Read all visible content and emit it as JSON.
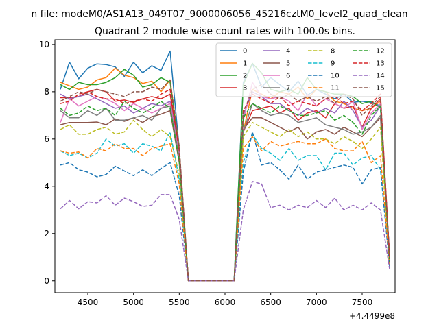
{
  "header": {
    "suptitle": "n file: modeM0/AS1A13_049T07_9000006056_45216cztM0_level2_quad_clean",
    "title": "Quadrant 2 module wise count rates with 100.0s bins."
  },
  "chart_data": {
    "type": "line",
    "title": "Quadrant 2 module wise count rates with 100.0s bins.",
    "xlabel": "",
    "ylabel": "",
    "offset_label": "+4.4499e8",
    "xlim": [
      4140,
      7860
    ],
    "ylim": [
      -0.5,
      10.2
    ],
    "xticks": [
      4500,
      5000,
      5500,
      6000,
      6500,
      7000,
      7500
    ],
    "xtick_labels": [
      "4500",
      "5000",
      "5500",
      "6000",
      "6500",
      "7000",
      "7500"
    ],
    "yticks": [
      0,
      2,
      4,
      6,
      8,
      10
    ],
    "ytick_labels": [
      "0",
      "2",
      "4",
      "6",
      "8",
      "10"
    ],
    "grid": false,
    "legend_position": "top-right",
    "legend_columns": 4,
    "x": [
      4200,
      4300,
      4400,
      4500,
      4600,
      4700,
      4800,
      4900,
      5000,
      5100,
      5200,
      5300,
      5400,
      5500,
      5600,
      5700,
      5800,
      5900,
      6000,
      6100,
      6200,
      6300,
      6400,
      6500,
      6600,
      6700,
      6800,
      6900,
      7000,
      7100,
      7200,
      7300,
      7400,
      7500,
      7600,
      7700,
      7800
    ],
    "series": [
      {
        "name": "0",
        "color": "#1f77b4",
        "dash": "solid",
        "values": [
          8.1,
          9.25,
          8.55,
          9.0,
          9.18,
          9.15,
          9.05,
          8.65,
          9.25,
          8.8,
          9.1,
          8.9,
          9.72,
          5.6,
          0,
          0,
          0,
          0,
          0,
          0,
          8.4,
          9.2,
          8.2,
          8.6,
          8.3,
          8.0,
          8.45,
          7.85,
          8.1,
          7.9,
          7.7,
          7.9,
          7.55,
          7.6,
          7.55,
          7.4,
          1.1
        ]
      },
      {
        "name": "1",
        "color": "#ff7f0e",
        "dash": "solid",
        "values": [
          8.4,
          8.25,
          8.1,
          8.2,
          8.5,
          8.6,
          9.0,
          8.7,
          8.6,
          8.35,
          8.45,
          8.0,
          8.5,
          5.6,
          0,
          0,
          0,
          0,
          0,
          0,
          6.3,
          8.1,
          7.9,
          7.7,
          8.0,
          7.9,
          8.2,
          7.7,
          8.1,
          8.0,
          7.6,
          7.5,
          7.3,
          7.2,
          7.3,
          7.6,
          1.0
        ]
      },
      {
        "name": "2",
        "color": "#2ca02c",
        "dash": "solid",
        "values": [
          8.3,
          8.1,
          8.4,
          8.3,
          8.3,
          8.4,
          8.6,
          8.95,
          8.7,
          8.2,
          8.3,
          8.6,
          8.4,
          5.5,
          0,
          0,
          0,
          0,
          0,
          0,
          8.3,
          9.2,
          8.8,
          8.1,
          8.0,
          8.1,
          7.9,
          8.6,
          8.1,
          8.0,
          7.9,
          7.9,
          7.8,
          7.5,
          7.6,
          7.3,
          1.0
        ]
      },
      {
        "name": "3",
        "color": "#d62728",
        "dash": "solid",
        "values": [
          7.75,
          7.75,
          7.8,
          8.0,
          8.1,
          8.0,
          7.6,
          7.65,
          7.55,
          7.7,
          7.8,
          7.7,
          7.9,
          5.5,
          0,
          0,
          0,
          0,
          0,
          0,
          6.3,
          7.2,
          7.3,
          7.4,
          7.1,
          7.3,
          6.8,
          7.1,
          7.2,
          6.9,
          7.5,
          7.3,
          7.4,
          6.5,
          7.3,
          7.7,
          1.0
        ]
      },
      {
        "name": "4",
        "color": "#9467bd",
        "dash": "solid",
        "values": [
          7.9,
          7.7,
          7.8,
          7.9,
          7.7,
          7.5,
          7.3,
          7.4,
          7.1,
          7.3,
          7.5,
          7.4,
          7.6,
          5.4,
          0,
          0,
          0,
          0,
          0,
          0,
          7.0,
          8.0,
          7.8,
          7.5,
          7.5,
          7.2,
          7.0,
          7.3,
          7.1,
          7.3,
          7.1,
          7.6,
          7.2,
          6.5,
          6.8,
          7.4,
          0.9
        ]
      },
      {
        "name": "5",
        "color": "#8c564b",
        "dash": "solid",
        "values": [
          6.6,
          6.7,
          6.7,
          6.7,
          6.72,
          6.6,
          6.85,
          6.75,
          6.9,
          6.7,
          6.95,
          7.05,
          7.2,
          5.0,
          0,
          0,
          0,
          0,
          0,
          0,
          6.4,
          6.9,
          6.9,
          6.7,
          6.5,
          6.3,
          6.5,
          6.0,
          6.3,
          6.4,
          6.2,
          6.5,
          6.3,
          6.1,
          6.5,
          6.9,
          0.8
        ]
      },
      {
        "name": "6",
        "color": "#e377c2",
        "dash": "solid",
        "values": [
          6.7,
          7.7,
          7.4,
          7.6,
          7.8,
          7.7,
          7.5,
          7.2,
          7.5,
          7.3,
          7.1,
          7.3,
          7.5,
          5.3,
          0,
          0,
          0,
          0,
          0,
          0,
          6.8,
          8.4,
          7.8,
          7.7,
          7.8,
          7.6,
          7.2,
          7.9,
          7.4,
          7.7,
          7.5,
          7.3,
          7.6,
          6.4,
          7.1,
          7.5,
          0.9
        ]
      },
      {
        "name": "7",
        "color": "#7f7f7f",
        "dash": "solid",
        "values": [
          7.2,
          6.9,
          6.9,
          7.2,
          7.0,
          7.3,
          6.8,
          6.8,
          6.9,
          7.0,
          6.8,
          7.3,
          7.4,
          5.2,
          0,
          0,
          0,
          0,
          0,
          0,
          6.3,
          7.5,
          7.2,
          7.0,
          7.1,
          7.0,
          6.7,
          6.8,
          6.9,
          6.6,
          6.5,
          6.4,
          6.2,
          6.3,
          6.5,
          7.0,
          0.8
        ]
      },
      {
        "name": "8",
        "color": "#bcbd22",
        "dash": "dashed",
        "values": [
          6.4,
          6.6,
          6.2,
          6.2,
          6.4,
          6.5,
          6.2,
          6.3,
          6.8,
          6.4,
          6.1,
          6.4,
          6.1,
          4.5,
          0,
          0,
          0,
          0,
          0,
          0,
          6.1,
          6.7,
          6.5,
          6.3,
          6.1,
          6.4,
          6.1,
          6.3,
          6.0,
          6.0,
          5.8,
          6.1,
          5.9,
          5.6,
          6.0,
          6.5,
          0.7
        ]
      },
      {
        "name": "9",
        "color": "#17becf",
        "dash": "dashed",
        "values": [
          5.5,
          5.3,
          5.4,
          5.2,
          5.4,
          6.0,
          5.7,
          5.8,
          5.4,
          5.8,
          5.7,
          5.5,
          6.3,
          4.3,
          0,
          0,
          0,
          0,
          0,
          0,
          5.0,
          6.2,
          5.6,
          5.4,
          5.1,
          5.6,
          5.1,
          5.3,
          5.3,
          4.7,
          5.4,
          5.4,
          4.9,
          5.2,
          5.3,
          4.7,
          0.7
        ]
      },
      {
        "name": "10",
        "color": "#1f77b4",
        "dash": "dashed",
        "values": [
          4.9,
          5.0,
          4.7,
          4.6,
          4.4,
          4.5,
          4.85,
          4.65,
          4.45,
          4.7,
          4.45,
          4.75,
          5.0,
          3.6,
          0,
          0,
          0,
          0,
          0,
          0,
          4.6,
          6.3,
          4.9,
          5.0,
          4.7,
          4.3,
          4.9,
          4.3,
          4.6,
          4.7,
          4.8,
          4.9,
          4.8,
          4.1,
          4.7,
          4.8,
          0.6
        ]
      },
      {
        "name": "11",
        "color": "#ff7f0e",
        "dash": "dashed",
        "values": [
          5.5,
          5.4,
          5.45,
          5.2,
          5.6,
          5.5,
          5.8,
          5.6,
          5.6,
          5.3,
          5.6,
          5.7,
          5.8,
          4.1,
          0,
          0,
          0,
          0,
          0,
          0,
          5.6,
          6.1,
          5.5,
          5.9,
          5.7,
          5.8,
          5.9,
          5.8,
          5.8,
          6.0,
          5.6,
          5.5,
          5.5,
          5.9,
          5.0,
          5.3,
          0.7
        ]
      },
      {
        "name": "12",
        "color": "#2ca02c",
        "dash": "dashed",
        "values": [
          7.3,
          7.0,
          7.1,
          7.4,
          7.2,
          7.3,
          7.0,
          7.6,
          7.3,
          7.1,
          7.3,
          7.6,
          7.3,
          5.1,
          0,
          0,
          0,
          0,
          0,
          0,
          6.9,
          7.5,
          7.3,
          7.1,
          7.4,
          7.2,
          7.0,
          7.0,
          7.1,
          7.2,
          6.8,
          7.0,
          6.7,
          6.2,
          7.0,
          7.4,
          0.8
        ]
      },
      {
        "name": "13",
        "color": "#d62728",
        "dash": "dashed",
        "values": [
          7.5,
          7.6,
          7.9,
          8.0,
          7.8,
          7.7,
          7.7,
          7.5,
          7.6,
          7.7,
          7.6,
          7.9,
          8.1,
          5.5,
          0,
          0,
          0,
          0,
          0,
          0,
          7.2,
          7.9,
          7.7,
          7.5,
          7.8,
          7.4,
          7.6,
          7.5,
          7.4,
          7.7,
          7.8,
          7.5,
          7.6,
          7.2,
          7.5,
          7.9,
          1.0
        ]
      },
      {
        "name": "14",
        "color": "#9467bd",
        "dash": "dashed",
        "values": [
          3.05,
          3.4,
          3.05,
          3.35,
          3.3,
          3.6,
          3.2,
          3.5,
          3.35,
          3.15,
          3.2,
          3.65,
          3.65,
          2.6,
          0,
          0,
          0,
          0,
          0,
          0,
          3.0,
          4.2,
          4.1,
          3.1,
          3.2,
          3.0,
          3.2,
          3.1,
          3.4,
          3.1,
          3.5,
          3.0,
          3.2,
          3.0,
          3.3,
          3.0,
          0.5
        ]
      },
      {
        "name": "15",
        "color": "#8c564b",
        "dash": "dashed",
        "values": [
          7.6,
          7.8,
          8.0,
          7.9,
          8.1,
          8.0,
          7.9,
          7.8,
          8.0,
          8.0,
          8.2,
          8.1,
          8.5,
          5.7,
          0,
          0,
          0,
          0,
          0,
          0,
          7.1,
          8.1,
          8.3,
          7.9,
          7.7,
          7.9,
          7.6,
          7.8,
          7.6,
          7.8,
          7.5,
          7.9,
          7.7,
          7.0,
          7.4,
          7.8,
          1.0
        ]
      }
    ]
  }
}
